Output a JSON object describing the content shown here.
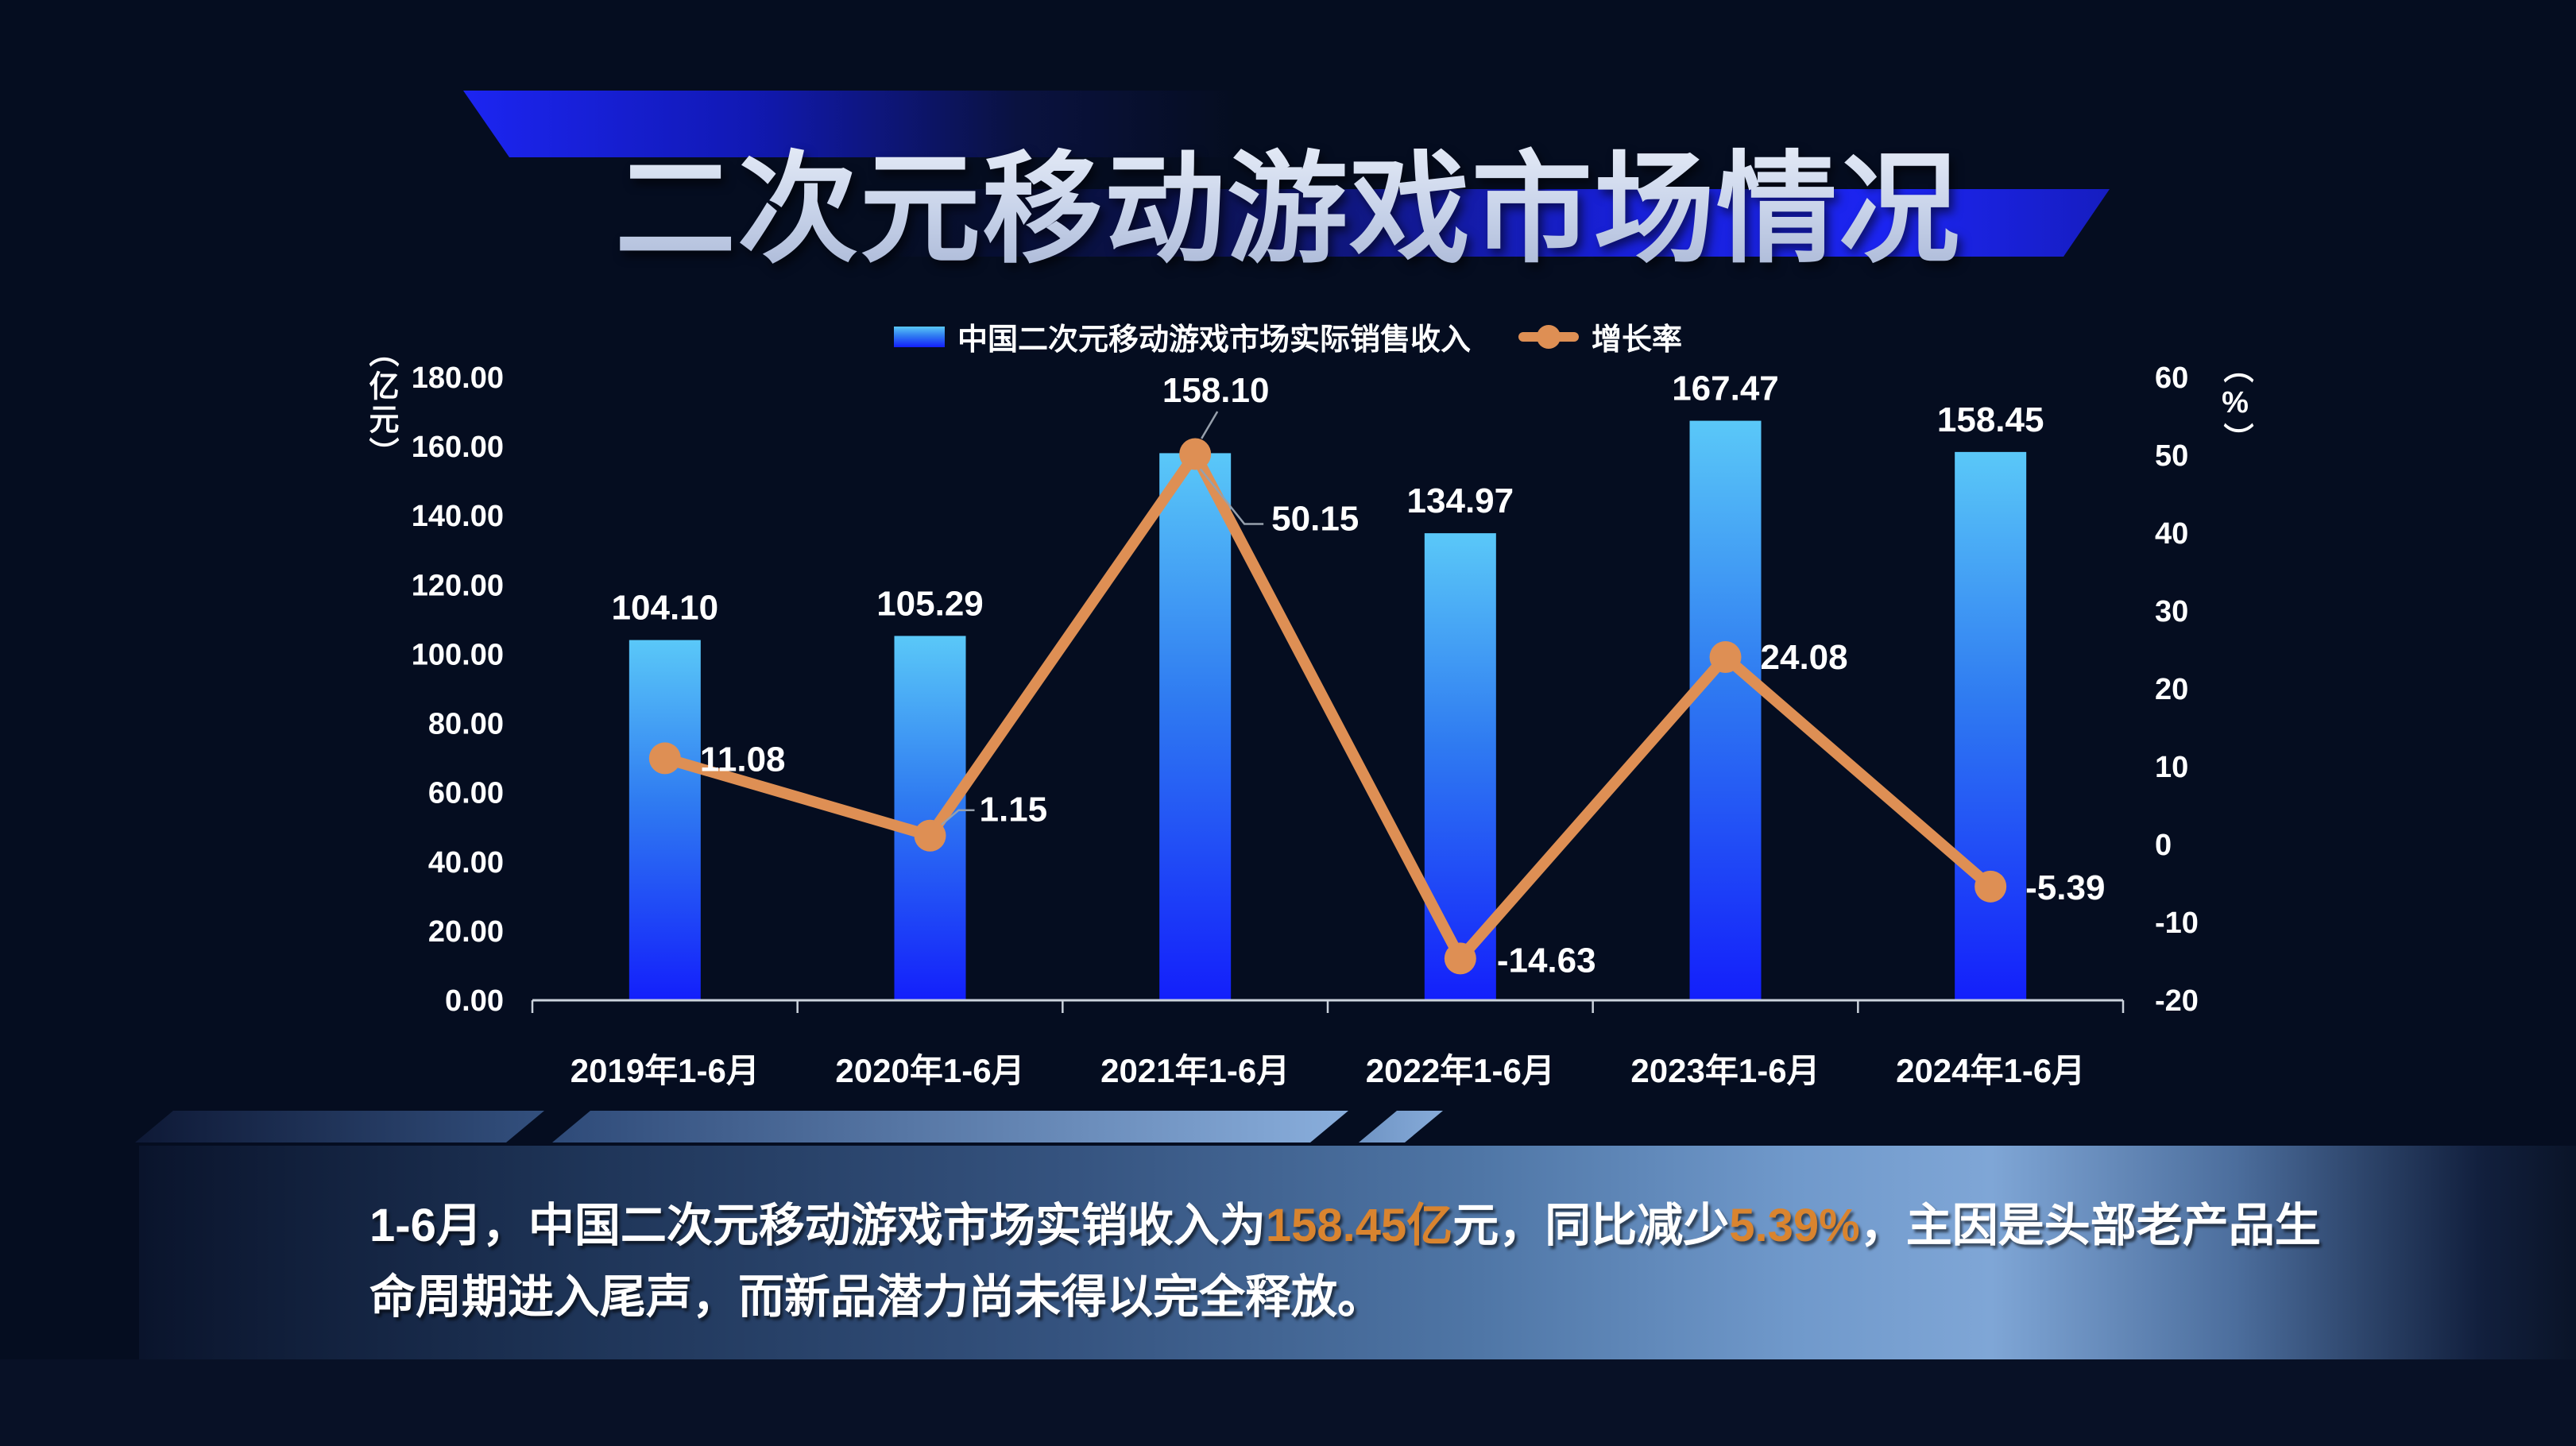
{
  "title": "二次元移动游戏市场情况",
  "colors": {
    "background": "#050D20",
    "bar_top": "#5AC8F8",
    "bar_mid": "#2F7BF1",
    "bar_bottom": "#131FFB",
    "line": "#DE8F54",
    "axis": "#CBD2DC",
    "leader": "#97A0AC",
    "label_text": "#FFFFFF",
    "accent_orange": "#D9842F",
    "banner_blue": "#1C25F2",
    "panel_light": "#7FA6D6",
    "panel_dark": "#0B1530"
  },
  "chart_data": {
    "type": "bar+line",
    "title": "",
    "categories": [
      "2019年1-6月",
      "2020年1-6月",
      "2021年1-6月",
      "2022年1-6月",
      "2023年1-6月",
      "2024年1-6月"
    ],
    "series": [
      {
        "name": "中国二次元移动游戏市场实际销售收入",
        "type": "bar",
        "axis": "left",
        "unit": "亿元",
        "values": [
          104.1,
          105.29,
          158.1,
          134.97,
          167.47,
          158.45
        ],
        "labels": [
          "104.10",
          "105.29",
          "158.10",
          "134.97",
          "167.47",
          "158.45"
        ]
      },
      {
        "name": "增长率",
        "type": "line",
        "axis": "right",
        "unit": "%",
        "values": [
          11.08,
          1.15,
          50.15,
          -14.63,
          24.08,
          -5.39
        ],
        "labels": [
          "11.08",
          "1.15",
          "50.15",
          "-14.63",
          "24.08",
          "-5.39"
        ]
      }
    ],
    "left_axis": {
      "unit_label": "（亿元）",
      "min": 0,
      "max": 180,
      "step": 20,
      "ticks": [
        "180.00",
        "160.00",
        "140.00",
        "120.00",
        "100.00",
        "80.00",
        "60.00",
        "40.00",
        "20.00",
        "0.00"
      ]
    },
    "right_axis": {
      "unit_label": "（%）",
      "min": -20,
      "max": 60,
      "step": 10,
      "ticks": [
        "60",
        "50",
        "40",
        "30",
        "20",
        "10",
        "0",
        "-10",
        "-20"
      ]
    },
    "grid": false,
    "legend_position": "top"
  },
  "footer": {
    "line1_segments": [
      {
        "text": "1-6月，中国二次元移动游戏市场实销收入为",
        "color": "white"
      },
      {
        "text": "158.45亿",
        "color": "orange"
      },
      {
        "text": "元，同比减少",
        "color": "white"
      },
      {
        "text": "5.39%",
        "color": "orange"
      },
      {
        "text": "，主因是头部老产品生",
        "color": "white"
      }
    ],
    "line2": "命周期进入尾声，而新品潜力尚未得以完全释放。"
  }
}
